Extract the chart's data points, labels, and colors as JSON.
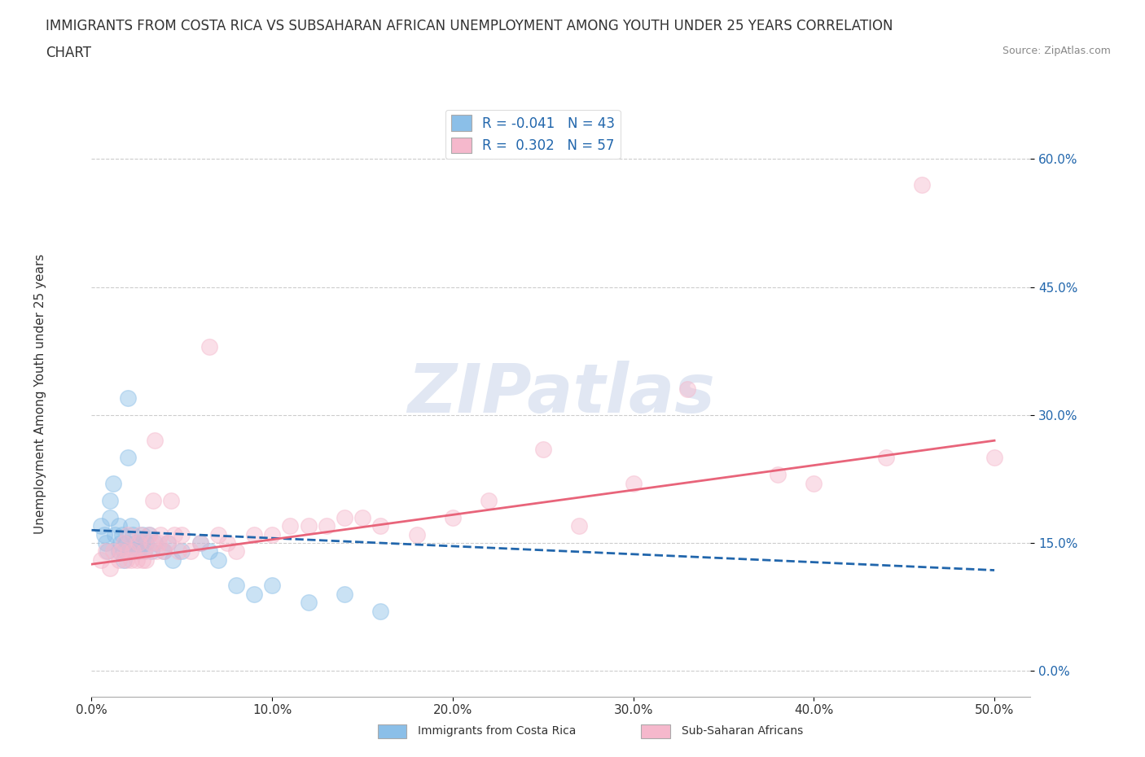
{
  "title_line1": "IMMIGRANTS FROM COSTA RICA VS SUBSAHARAN AFRICAN UNEMPLOYMENT AMONG YOUTH UNDER 25 YEARS CORRELATION",
  "title_line2": "CHART",
  "source": "Source: ZipAtlas.com",
  "ylabel": "Unemployment Among Youth under 25 years",
  "xlim": [
    0.0,
    0.52
  ],
  "ylim": [
    -0.03,
    0.68
  ],
  "yticks": [
    0.0,
    0.15,
    0.3,
    0.45,
    0.6
  ],
  "ytick_labels": [
    "0.0%",
    "15.0%",
    "30.0%",
    "45.0%",
    "60.0%"
  ],
  "xticks": [
    0.0,
    0.1,
    0.2,
    0.3,
    0.4,
    0.5
  ],
  "xtick_labels": [
    "0.0%",
    "10.0%",
    "20.0%",
    "30.0%",
    "40.0%",
    "50.0%"
  ],
  "blue_color": "#8bbfe8",
  "pink_color": "#f5b8cc",
  "blue_line_color": "#2166ac",
  "pink_line_color": "#e8647a",
  "r_blue": -0.041,
  "n_blue": 43,
  "r_pink": 0.302,
  "n_pink": 57,
  "legend_label_blue": "Immigrants from Costa Rica",
  "legend_label_pink": "Sub-Saharan Africans",
  "watermark": "ZIPatlas",
  "blue_scatter_x": [
    0.005,
    0.007,
    0.008,
    0.009,
    0.01,
    0.01,
    0.012,
    0.013,
    0.015,
    0.015,
    0.016,
    0.017,
    0.018,
    0.018,
    0.019,
    0.02,
    0.02,
    0.021,
    0.022,
    0.023,
    0.024,
    0.025,
    0.026,
    0.027,
    0.028,
    0.029,
    0.03,
    0.032,
    0.033,
    0.035,
    0.04,
    0.042,
    0.045,
    0.05,
    0.06,
    0.065,
    0.07,
    0.08,
    0.09,
    0.1,
    0.12,
    0.14,
    0.16
  ],
  "blue_scatter_y": [
    0.17,
    0.16,
    0.15,
    0.14,
    0.18,
    0.2,
    0.22,
    0.16,
    0.17,
    0.14,
    0.15,
    0.16,
    0.13,
    0.14,
    0.15,
    0.25,
    0.32,
    0.14,
    0.17,
    0.16,
    0.15,
    0.14,
    0.14,
    0.15,
    0.16,
    0.14,
    0.15,
    0.16,
    0.14,
    0.15,
    0.14,
    0.15,
    0.13,
    0.14,
    0.15,
    0.14,
    0.13,
    0.1,
    0.09,
    0.1,
    0.08,
    0.09,
    0.07
  ],
  "pink_scatter_x": [
    0.005,
    0.008,
    0.01,
    0.012,
    0.015,
    0.016,
    0.018,
    0.019,
    0.02,
    0.02,
    0.022,
    0.023,
    0.025,
    0.026,
    0.027,
    0.028,
    0.029,
    0.03,
    0.032,
    0.033,
    0.034,
    0.035,
    0.036,
    0.037,
    0.038,
    0.04,
    0.042,
    0.044,
    0.046,
    0.048,
    0.05,
    0.055,
    0.06,
    0.065,
    0.07,
    0.075,
    0.08,
    0.09,
    0.1,
    0.11,
    0.12,
    0.13,
    0.14,
    0.15,
    0.16,
    0.18,
    0.2,
    0.22,
    0.25,
    0.27,
    0.3,
    0.33,
    0.38,
    0.4,
    0.44,
    0.46,
    0.5
  ],
  "pink_scatter_y": [
    0.13,
    0.14,
    0.12,
    0.14,
    0.13,
    0.14,
    0.15,
    0.13,
    0.14,
    0.16,
    0.13,
    0.14,
    0.13,
    0.15,
    0.16,
    0.13,
    0.14,
    0.13,
    0.16,
    0.15,
    0.2,
    0.27,
    0.14,
    0.15,
    0.16,
    0.14,
    0.15,
    0.2,
    0.16,
    0.14,
    0.16,
    0.14,
    0.15,
    0.38,
    0.16,
    0.15,
    0.14,
    0.16,
    0.16,
    0.17,
    0.17,
    0.17,
    0.18,
    0.18,
    0.17,
    0.16,
    0.18,
    0.2,
    0.26,
    0.17,
    0.22,
    0.33,
    0.23,
    0.22,
    0.25,
    0.57,
    0.25
  ],
  "blue_line_x": [
    0.0,
    0.5
  ],
  "blue_line_y": [
    0.165,
    0.118
  ],
  "pink_line_x": [
    0.0,
    0.5
  ],
  "pink_line_y": [
    0.125,
    0.27
  ],
  "grid_color": "#cccccc",
  "bg_color": "#ffffff",
  "title_fontsize": 12,
  "axis_label_fontsize": 11,
  "tick_fontsize": 11,
  "legend_fontsize": 12,
  "scatter_size": 200,
  "scatter_alpha": 0.45,
  "watermark_color": "#cdd8ec",
  "watermark_fontsize": 60
}
